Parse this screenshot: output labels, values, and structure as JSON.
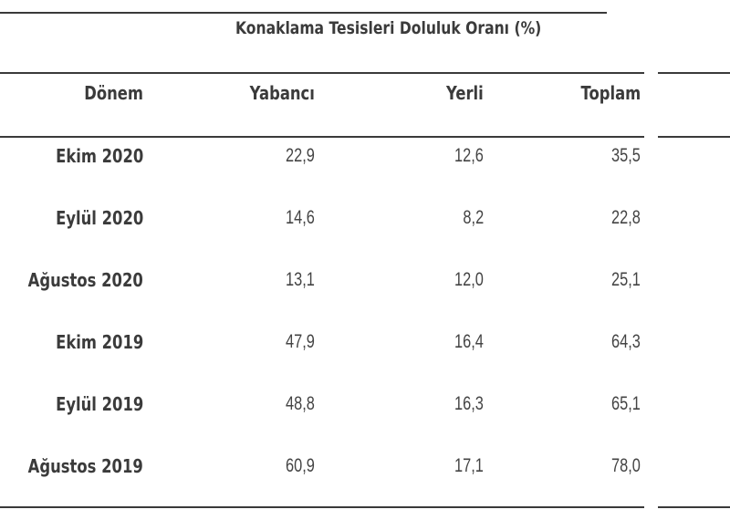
{
  "table": {
    "title": "Konaklama Tesisleri Doluluk Oranı (%)",
    "columns": [
      "Dönem",
      "Yabancı",
      "Yerli",
      "Toplam"
    ],
    "rows": [
      {
        "period": "Ekim 2020",
        "yabanci": "22,9",
        "yerli": "12,6",
        "toplam": "35,5"
      },
      {
        "period": "Eylül 2020",
        "yabanci": "14,6",
        "yerli": "8,2",
        "toplam": "22,8"
      },
      {
        "period": "Ağustos 2020",
        "yabanci": "13,1",
        "yerli": "12,0",
        "toplam": "25,1"
      },
      {
        "period": "Ekim 2019",
        "yabanci": "47,9",
        "yerli": "16,4",
        "toplam": "64,3"
      },
      {
        "period": "Eylül 2019",
        "yabanci": "48,8",
        "yerli": "16,3",
        "toplam": "65,1"
      },
      {
        "period": "Ağustos 2019",
        "yabanci": "60,9",
        "yerli": "17,1",
        "toplam": "78,0"
      }
    ]
  }
}
